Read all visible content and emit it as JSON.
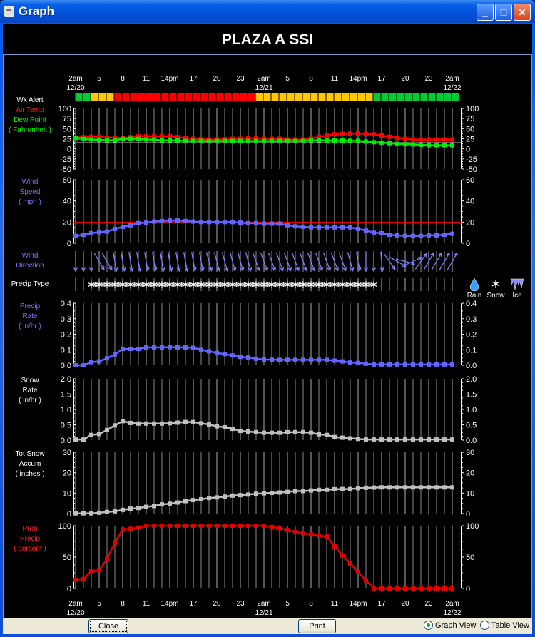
{
  "window": {
    "title": "Graph",
    "icon": "java-cup-icon"
  },
  "header": {
    "title": "PLAZA A SSI"
  },
  "time_axis": {
    "hour_labels": [
      "2am",
      "5",
      "8",
      "11",
      "14pm",
      "17",
      "20",
      "23",
      "2am",
      "5",
      "8",
      "11",
      "14pm",
      "17",
      "20",
      "23",
      "2am"
    ],
    "date_labels": [
      "12/20",
      "12/21",
      "12/22"
    ]
  },
  "legend": {
    "precip_types": [
      {
        "label": "Rain",
        "icon": "raindrop-icon"
      },
      {
        "label": "Snow",
        "icon": "snowflake-icon"
      },
      {
        "label": "Ice",
        "icon": "icicle-icon"
      }
    ]
  },
  "footer": {
    "close_label": "Close",
    "print_label": "Print",
    "views": [
      {
        "label": "Graph View",
        "selected": true
      },
      {
        "label": "Table View",
        "selected": false
      }
    ]
  },
  "chart_data": [
    {
      "id": "wx_alert",
      "type": "heatmap",
      "label": [
        {
          "text": "Wx Alert",
          "color": "#ffffff"
        }
      ],
      "colors": {
        "green": "#00cc33",
        "yellow": "#ffc800",
        "red": "#ff0000"
      },
      "values": [
        "green",
        "green",
        "yellow",
        "yellow",
        "yellow",
        "red",
        "red",
        "red",
        "red",
        "red",
        "red",
        "red",
        "red",
        "red",
        "red",
        "red",
        "red",
        "red",
        "red",
        "red",
        "red",
        "red",
        "red",
        "yellow",
        "yellow",
        "yellow",
        "yellow",
        "yellow",
        "yellow",
        "yellow",
        "yellow",
        "yellow",
        "yellow",
        "yellow",
        "yellow",
        "yellow",
        "yellow",
        "yellow",
        "green",
        "green",
        "green",
        "green",
        "green",
        "green",
        "green",
        "green",
        "green",
        "green",
        "green"
      ]
    },
    {
      "id": "temperature",
      "type": "line",
      "label": [
        {
          "text": "Air Temp",
          "color": "#ff2020"
        },
        {
          "text": "Dew Point",
          "color": "#00ff00"
        },
        {
          "text": "( Fahrenheit )",
          "color": "#00ff00"
        }
      ],
      "ylim": [
        -50,
        100
      ],
      "ticks": [
        "100",
        "75",
        "50",
        "25",
        "0",
        "-25",
        "-50"
      ],
      "reference_lines": [
        {
          "value": 32,
          "color": "#0000ff"
        },
        {
          "value": 15,
          "color": "#ffffff"
        }
      ],
      "series": [
        {
          "name": "Air Temp",
          "color": "#ff0000",
          "values": [
            28,
            29,
            30,
            30,
            27,
            28,
            26,
            29,
            31,
            31,
            31,
            31,
            31,
            29,
            26,
            25,
            24,
            23,
            23,
            24,
            25,
            25,
            26,
            26,
            25,
            25,
            25,
            23,
            23,
            23,
            25,
            30,
            33,
            36,
            37,
            38,
            38,
            37,
            36,
            33,
            30,
            27,
            25,
            23,
            23,
            23,
            23,
            23,
            23
          ]
        },
        {
          "name": "Dew Point",
          "color": "#00ee00",
          "values": [
            27,
            24.5,
            23,
            22.5,
            21,
            21.5,
            24.5,
            25,
            24.5,
            23,
            23,
            21,
            21,
            20.5,
            19.5,
            19.5,
            19.5,
            19,
            19.5,
            19.5,
            19.5,
            19.5,
            19.5,
            19.5,
            19.5,
            19.5,
            19.5,
            19.5,
            19.5,
            19.5,
            21,
            21.5,
            20.5,
            20.5,
            20.5,
            20,
            20,
            18,
            16.5,
            15.5,
            14,
            12.5,
            11.5,
            11,
            10,
            9,
            9,
            9,
            9
          ]
        }
      ]
    },
    {
      "id": "wind_speed",
      "type": "line",
      "label": [
        {
          "text": "Wind",
          "color": "#7878ff"
        },
        {
          "text": "Speed",
          "color": "#7878ff"
        },
        {
          "text": "( mph )",
          "color": "#7878ff"
        }
      ],
      "ylim": [
        0,
        60
      ],
      "ticks": [
        "60",
        "40",
        "20",
        "0"
      ],
      "reference_lines": [
        {
          "value": 20,
          "color": "#ff0000"
        }
      ],
      "series": [
        {
          "color": "#6464ff",
          "values": [
            7,
            8,
            9.5,
            10.5,
            11,
            13.5,
            15.5,
            17,
            19,
            19.5,
            20.5,
            21,
            21.5,
            21.5,
            21,
            20.5,
            20,
            20,
            20,
            20,
            20,
            19.5,
            19,
            19,
            18.5,
            18.5,
            18.5,
            17,
            16,
            15.5,
            15,
            15,
            15,
            15,
            15,
            15,
            13.5,
            12,
            10,
            9.5,
            8,
            7.5,
            7,
            7,
            7,
            7.5,
            7.5,
            8,
            9
          ]
        }
      ]
    },
    {
      "id": "wind_direction",
      "type": "arrows",
      "label": [
        {
          "text": "Wind",
          "color": "#7878ff"
        },
        {
          "text": "Direction",
          "color": "#7878ff"
        }
      ],
      "color": "#8080ff",
      "values": [
        0,
        0,
        0,
        330,
        330,
        350,
        350,
        350,
        350,
        350,
        350,
        350,
        350,
        350,
        350,
        350,
        350,
        345,
        345,
        345,
        345,
        345,
        345,
        340,
        340,
        340,
        340,
        340,
        340,
        340,
        340,
        340,
        340,
        340,
        340,
        345,
        350,
        0,
        0,
        355,
        325,
        300,
        285,
        245,
        215,
        210,
        210,
        210,
        210
      ]
    },
    {
      "id": "precip_type",
      "type": "categorical",
      "label": [
        {
          "text": "Precip Type",
          "color": "#ffffff"
        }
      ],
      "values": [
        "none",
        "none",
        "snow",
        "snow",
        "snow",
        "snow",
        "snow",
        "snow",
        "snow",
        "snow",
        "snow",
        "snow",
        "snow",
        "snow",
        "snow",
        "snow",
        "snow",
        "snow",
        "snow",
        "snow",
        "snow",
        "snow",
        "snow",
        "snow",
        "snow",
        "snow",
        "snow",
        "snow",
        "snow",
        "snow",
        "snow",
        "snow",
        "snow",
        "snow",
        "snow",
        "snow",
        "snow",
        "snow",
        "snow",
        "none",
        "none",
        "none",
        "none",
        "none",
        "none",
        "none",
        "none",
        "none",
        "none"
      ]
    },
    {
      "id": "precip_rate",
      "type": "line",
      "label": [
        {
          "text": "Precip",
          "color": "#7878ff"
        },
        {
          "text": "Rate",
          "color": "#7878ff"
        },
        {
          "text": "( in/hr )",
          "color": "#7878ff"
        }
      ],
      "ylim": [
        0,
        0.4
      ],
      "ticks": [
        "0.4",
        "0.3",
        "0.2",
        "0.1",
        "0.0"
      ],
      "series": [
        {
          "color": "#6464ff",
          "values": [
            0,
            0,
            0.02,
            0.025,
            0.045,
            0.07,
            0.105,
            0.105,
            0.105,
            0.115,
            0.115,
            0.115,
            0.117,
            0.115,
            0.115,
            0.113,
            0.1,
            0.09,
            0.08,
            0.072,
            0.063,
            0.054,
            0.05,
            0.042,
            0.037,
            0.036,
            0.035,
            0.035,
            0.035,
            0.035,
            0.035,
            0.035,
            0.035,
            0.03,
            0.025,
            0.018,
            0.015,
            0.01,
            0.005,
            0.005,
            0.005,
            0.005,
            0.005,
            0.005,
            0.005,
            0.005,
            0.005,
            0.005,
            0.005
          ]
        }
      ]
    },
    {
      "id": "snow_rate",
      "type": "line",
      "label": [
        {
          "text": "Snow",
          "color": "#ffffff"
        },
        {
          "text": "Rate",
          "color": "#ffffff"
        },
        {
          "text": "( in/hr )",
          "color": "#ffffff"
        }
      ],
      "ylim": [
        0,
        2.0
      ],
      "ticks": [
        "2.0",
        "1.5",
        "1.0",
        "0.5",
        "0.0"
      ],
      "series": [
        {
          "color": "#c0c0c0",
          "values": [
            0.02,
            0.02,
            0.17,
            0.2,
            0.33,
            0.48,
            0.62,
            0.56,
            0.54,
            0.54,
            0.54,
            0.54,
            0.55,
            0.57,
            0.59,
            0.59,
            0.55,
            0.51,
            0.45,
            0.42,
            0.37,
            0.3,
            0.28,
            0.26,
            0.24,
            0.24,
            0.24,
            0.26,
            0.26,
            0.26,
            0.24,
            0.19,
            0.17,
            0.1,
            0.08,
            0.06,
            0.04,
            0.02,
            0.02,
            0.02,
            0.02,
            0.02,
            0.02,
            0.02,
            0.02,
            0.02,
            0.02,
            0.02,
            0.02
          ]
        }
      ]
    },
    {
      "id": "snow_accumulation",
      "type": "line",
      "label": [
        {
          "text": "Tot Snow",
          "color": "#ffffff"
        },
        {
          "text": "Accum",
          "color": "#ffffff"
        },
        {
          "text": "( inches )",
          "color": "#ffffff"
        }
      ],
      "ylim": [
        0,
        30
      ],
      "ticks": [
        "30",
        "20",
        "10",
        "0"
      ],
      "series": [
        {
          "color": "#c0c0c0",
          "values": [
            0.1,
            0.1,
            0.1,
            0.4,
            0.8,
            1.1,
            1.8,
            2.4,
            2.7,
            3.3,
            3.7,
            4.5,
            4.8,
            5.4,
            6.1,
            6.6,
            7,
            7.6,
            7.9,
            8.3,
            8.8,
            9,
            9.3,
            9.7,
            9.9,
            10.1,
            10.3,
            10.6,
            11,
            11,
            11.3,
            11.6,
            11.6,
            11.9,
            12,
            12,
            12.4,
            12.6,
            12.7,
            12.8,
            12.8,
            12.8,
            12.8,
            12.8,
            12.8,
            12.8,
            12.8,
            12.8,
            12.8
          ]
        }
      ]
    },
    {
      "id": "precip_probability",
      "type": "line",
      "label": [
        {
          "text": "Prob",
          "color": "#ff2020"
        },
        {
          "text": "Precip",
          "color": "#ff2020"
        },
        {
          "text": "( percent )",
          "color": "#ff2020"
        }
      ],
      "ylim": [
        0,
        100
      ],
      "ticks": [
        "100",
        "50",
        "0"
      ],
      "series": [
        {
          "color": "#e00000",
          "values": [
            14,
            15,
            28,
            29,
            47,
            73,
            94,
            95,
            97,
            100,
            100,
            100,
            100,
            100,
            100,
            100,
            100,
            100,
            100,
            100,
            100,
            100,
            100,
            100,
            100,
            98,
            96,
            93,
            90,
            88,
            86,
            84,
            83,
            67,
            53,
            40,
            26,
            13,
            0,
            0,
            0,
            0,
            0,
            0,
            0,
            0,
            0,
            0,
            0
          ]
        }
      ]
    }
  ]
}
